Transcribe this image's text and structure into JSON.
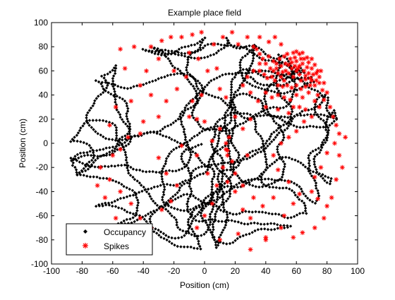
{
  "chart_data": {
    "type": "scatter",
    "title": "Example place field",
    "xlabel": "Position (cm)",
    "ylabel": "Position (cm)",
    "xlim": [
      -100,
      100
    ],
    "ylim": [
      -100,
      100
    ],
    "x_ticks": [
      -100,
      -80,
      -60,
      -40,
      -20,
      0,
      20,
      40,
      60,
      80,
      100
    ],
    "y_ticks": [
      -100,
      -80,
      -60,
      -40,
      -20,
      0,
      20,
      40,
      60,
      80,
      100
    ],
    "grid": false,
    "legend_position": "bottom-left",
    "series": [
      {
        "name": "Occupancy",
        "marker": "filled-diamond",
        "color": "#000000",
        "approx_count": 2000,
        "extent": {
          "x_min": -92,
          "x_max": 93,
          "y_min": -92,
          "y_max": 92
        },
        "shape": "dense random-walk trajectory filling a roughly circular arena centred near (0, 0)"
      },
      {
        "name": "Spikes",
        "marker": "star",
        "color": "#ff0000",
        "field_center": [
          55,
          58
        ],
        "field_radius": 18,
        "points": [
          [
            42,
            72
          ],
          [
            45,
            68
          ],
          [
            47,
            62
          ],
          [
            48,
            58
          ],
          [
            50,
            55
          ],
          [
            52,
            52
          ],
          [
            50,
            64
          ],
          [
            53,
            60
          ],
          [
            55,
            58
          ],
          [
            55,
            65
          ],
          [
            57,
            62
          ],
          [
            58,
            55
          ],
          [
            56,
            70
          ],
          [
            60,
            60
          ],
          [
            60,
            68
          ],
          [
            62,
            64
          ],
          [
            62,
            57
          ],
          [
            63,
            52
          ],
          [
            64,
            66
          ],
          [
            65,
            60
          ],
          [
            65,
            70
          ],
          [
            66,
            56
          ],
          [
            67,
            63
          ],
          [
            68,
            67
          ],
          [
            68,
            58
          ],
          [
            69,
            54
          ],
          [
            70,
            62
          ],
          [
            70,
            70
          ],
          [
            71,
            57
          ],
          [
            72,
            65
          ],
          [
            73,
            52
          ],
          [
            74,
            60
          ],
          [
            52,
            72
          ],
          [
            54,
            74
          ],
          [
            58,
            75
          ],
          [
            60,
            76
          ],
          [
            62,
            74
          ],
          [
            64,
            75
          ],
          [
            48,
            48
          ],
          [
            51,
            47
          ],
          [
            54,
            48
          ],
          [
            57,
            46
          ],
          [
            60,
            48
          ],
          [
            63,
            45
          ],
          [
            66,
            47
          ],
          [
            69,
            48
          ],
          [
            72,
            48
          ],
          [
            75,
            55
          ],
          [
            76,
            60
          ],
          [
            78,
            50
          ],
          [
            44,
            55
          ],
          [
            46,
            52
          ],
          [
            43,
            62
          ],
          [
            40,
            66
          ],
          [
            38,
            70
          ],
          [
            36,
            74
          ],
          [
            34,
            78
          ],
          [
            32,
            80
          ],
          [
            36,
            60
          ],
          [
            39,
            57
          ],
          [
            41,
            54
          ],
          [
            49,
            70
          ],
          [
            53,
            66
          ],
          [
            59,
            71
          ],
          [
            61,
            62
          ],
          [
            57,
            67
          ],
          [
            51,
            59
          ],
          [
            47,
            66
          ],
          [
            45,
            60
          ],
          [
            67,
            71
          ],
          [
            63,
            70
          ],
          [
            59,
            64
          ],
          [
            66,
            53
          ],
          [
            70,
            52
          ],
          [
            73,
            58
          ],
          [
            75,
            50
          ],
          [
            77,
            44
          ],
          [
            80,
            42
          ],
          [
            78,
            36
          ],
          [
            82,
            30
          ],
          [
            84,
            22
          ],
          [
            86,
            15
          ],
          [
            88,
            8
          ],
          [
            85,
            0
          ],
          [
            80,
            -8
          ],
          [
            76,
            -20
          ],
          [
            72,
            -28
          ],
          [
            70,
            -40
          ],
          [
            74,
            -46
          ],
          [
            80,
            -52
          ],
          [
            83,
            -45
          ],
          [
            86,
            -30
          ],
          [
            90,
            -20
          ],
          [
            88,
            -10
          ],
          [
            92,
            5
          ],
          [
            78,
            -62
          ],
          [
            72,
            -70
          ],
          [
            64,
            -74
          ],
          [
            58,
            -78
          ],
          [
            50,
            -70
          ],
          [
            40,
            -78
          ],
          [
            30,
            -62
          ],
          [
            25,
            -55
          ],
          [
            20,
            -40
          ],
          [
            15,
            -32
          ],
          [
            12,
            -20
          ],
          [
            15,
            -10
          ],
          [
            14,
            0
          ],
          [
            16,
            5
          ],
          [
            14,
            -5
          ],
          [
            15,
            -6
          ],
          [
            18,
            -15
          ],
          [
            20,
            22
          ],
          [
            14,
            38
          ],
          [
            10,
            45
          ],
          [
            8,
            62
          ],
          [
            2,
            60
          ],
          [
            -4,
            70
          ],
          [
            -10,
            75
          ],
          [
            -15,
            88
          ],
          [
            -8,
            90
          ],
          [
            -22,
            88
          ],
          [
            -28,
            85
          ],
          [
            -35,
            80
          ],
          [
            -46,
            80
          ],
          [
            -55,
            78
          ],
          [
            -52,
            62
          ],
          [
            -42,
            48
          ],
          [
            -35,
            40
          ],
          [
            -25,
            35
          ],
          [
            -18,
            45
          ],
          [
            -20,
            60
          ],
          [
            -10,
            22
          ],
          [
            -5,
            20
          ],
          [
            -30,
            22
          ],
          [
            -40,
            18
          ],
          [
            -42,
            8
          ],
          [
            -50,
            5
          ],
          [
            -55,
            -5
          ],
          [
            -60,
            -10
          ],
          [
            -68,
            -20
          ],
          [
            -62,
            -30
          ],
          [
            -55,
            -40
          ],
          [
            -48,
            -50
          ],
          [
            -42,
            -62
          ],
          [
            -35,
            -70
          ],
          [
            -28,
            -55
          ],
          [
            -22,
            -48
          ],
          [
            -18,
            -35
          ],
          [
            -25,
            -25
          ],
          [
            -30,
            -12
          ],
          [
            -15,
            -2
          ],
          [
            -5,
            -10
          ],
          [
            2,
            -25
          ],
          [
            8,
            -35
          ],
          [
            5,
            -50
          ],
          [
            0,
            -60
          ],
          [
            -5,
            -70
          ],
          [
            10,
            -80
          ],
          [
            22,
            -75
          ],
          [
            30,
            -88
          ],
          [
            40,
            -80
          ],
          [
            52,
            -60
          ],
          [
            58,
            -50
          ],
          [
            62,
            -42
          ],
          [
            55,
            -32
          ],
          [
            48,
            -22
          ],
          [
            45,
            -10
          ],
          [
            50,
            0
          ],
          [
            55,
            5
          ],
          [
            60,
            10
          ],
          [
            65,
            18
          ],
          [
            70,
            22
          ],
          [
            75,
            30
          ],
          [
            62,
            30
          ],
          [
            55,
            25
          ],
          [
            48,
            28
          ],
          [
            40,
            30
          ],
          [
            35,
            35
          ],
          [
            30,
            42
          ],
          [
            25,
            48
          ],
          [
            28,
            55
          ],
          [
            32,
            60
          ],
          [
            36,
            66
          ],
          [
            40,
            42
          ],
          [
            44,
            38
          ],
          [
            48,
            40
          ],
          [
            52,
            38
          ],
          [
            56,
            36
          ],
          [
            60,
            40
          ],
          [
            64,
            38
          ],
          [
            68,
            42
          ],
          [
            58,
            30
          ],
          [
            66,
            28
          ],
          [
            72,
            35
          ],
          [
            74,
            40
          ],
          [
            30,
            20
          ],
          [
            25,
            12
          ],
          [
            20,
            -25
          ],
          [
            25,
            -35
          ],
          [
            32,
            -45
          ],
          [
            38,
            -52
          ],
          [
            45,
            -45
          ],
          [
            10,
            12
          ],
          [
            5,
            2
          ],
          [
            0,
            18
          ],
          [
            -8,
            35
          ],
          [
            -12,
            55
          ],
          [
            -2,
            40
          ],
          [
            28,
            -10
          ],
          [
            -58,
            -62
          ],
          [
            -65,
            -45
          ],
          [
            -70,
            -35
          ],
          [
            -62,
            15
          ],
          [
            -58,
            30
          ],
          [
            -48,
            35
          ],
          [
            -38,
            60
          ],
          [
            -30,
            70
          ],
          [
            22,
            82
          ],
          [
            28,
            88
          ],
          [
            36,
            88
          ],
          [
            42,
            84
          ],
          [
            18,
            92
          ],
          [
            12,
            88
          ],
          [
            -2,
            92
          ],
          [
            6,
            82
          ],
          [
            46,
            88
          ],
          [
            50,
            82
          ]
        ]
      }
    ]
  }
}
